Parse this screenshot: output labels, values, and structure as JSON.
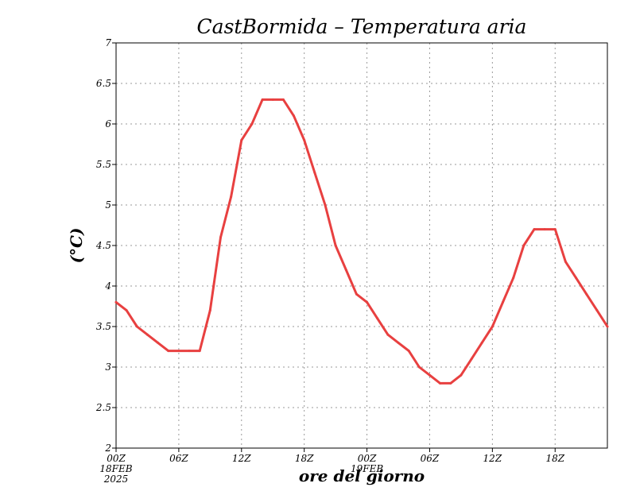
{
  "chart_data": {
    "type": "line",
    "title": "CastBormida – Temperatura aria",
    "xlabel": "ore del giorno",
    "ylabel": "(°C)",
    "ylim": [
      2,
      7
    ],
    "xlim": [
      0,
      47
    ],
    "grid": true,
    "x_ticks": [
      {
        "x": 0,
        "label": "00Z",
        "extra": [
          "18FEB",
          "2025"
        ]
      },
      {
        "x": 6,
        "label": "06Z"
      },
      {
        "x": 12,
        "label": "12Z"
      },
      {
        "x": 18,
        "label": "18Z"
      },
      {
        "x": 24,
        "label": "00Z",
        "extra": [
          "19FEB"
        ]
      },
      {
        "x": 30,
        "label": "06Z"
      },
      {
        "x": 36,
        "label": "12Z"
      },
      {
        "x": 42,
        "label": "18Z"
      }
    ],
    "y_ticks": [
      {
        "v": 2,
        "label": "2"
      },
      {
        "v": 2.5,
        "label": "2.5"
      },
      {
        "v": 3,
        "label": "3"
      },
      {
        "v": 3.5,
        "label": "3.5"
      },
      {
        "v": 4,
        "label": "4"
      },
      {
        "v": 4.5,
        "label": "4.5"
      },
      {
        "v": 5,
        "label": "5"
      },
      {
        "v": 5.5,
        "label": "5.5"
      },
      {
        "v": 6,
        "label": "6"
      },
      {
        "v": 6.5,
        "label": "6.5"
      },
      {
        "v": 7,
        "label": "7"
      }
    ],
    "series": [
      {
        "color": "#e84040",
        "points": [
          [
            0,
            3.8
          ],
          [
            1,
            3.7
          ],
          [
            2,
            3.5
          ],
          [
            3,
            3.4
          ],
          [
            4,
            3.3
          ],
          [
            5,
            3.2
          ],
          [
            6,
            3.2
          ],
          [
            7,
            3.2
          ],
          [
            8,
            3.2
          ],
          [
            9,
            3.7
          ],
          [
            10,
            4.6
          ],
          [
            11,
            5.1
          ],
          [
            12,
            5.8
          ],
          [
            13,
            6.0
          ],
          [
            14,
            6.3
          ],
          [
            15,
            6.3
          ],
          [
            16,
            6.3
          ],
          [
            17,
            6.1
          ],
          [
            18,
            5.8
          ],
          [
            19,
            5.4
          ],
          [
            20,
            5.0
          ],
          [
            21,
            4.5
          ],
          [
            22,
            4.2
          ],
          [
            23,
            3.9
          ],
          [
            24,
            3.8
          ],
          [
            25,
            3.6
          ],
          [
            26,
            3.4
          ],
          [
            27,
            3.3
          ],
          [
            28,
            3.2
          ],
          [
            29,
            3.0
          ],
          [
            30,
            2.9
          ],
          [
            31,
            2.8
          ],
          [
            32,
            2.8
          ],
          [
            33,
            2.9
          ],
          [
            34,
            3.1
          ],
          [
            35,
            3.3
          ],
          [
            36,
            3.5
          ],
          [
            37,
            3.8
          ],
          [
            38,
            4.1
          ],
          [
            39,
            4.5
          ],
          [
            40,
            4.7
          ],
          [
            41,
            4.7
          ],
          [
            42,
            4.7
          ],
          [
            43,
            4.3
          ],
          [
            44,
            4.1
          ],
          [
            45,
            3.9
          ],
          [
            46,
            3.7
          ],
          [
            47,
            3.5
          ]
        ]
      }
    ]
  }
}
